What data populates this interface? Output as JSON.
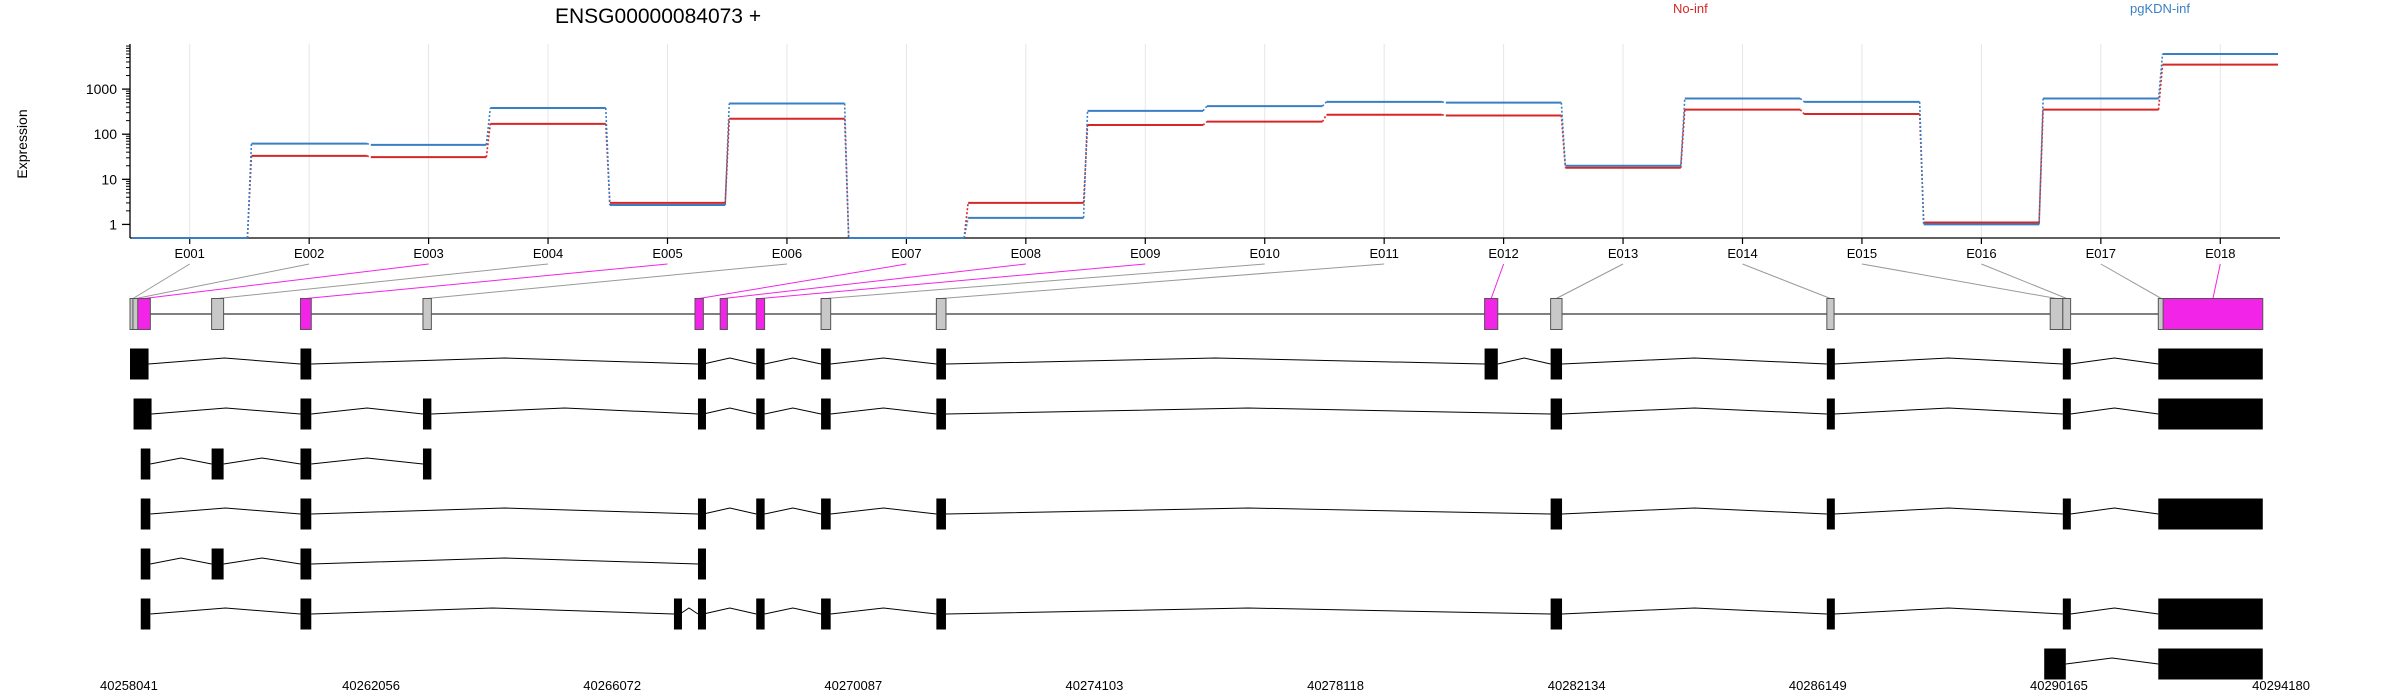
{
  "title": "ENSG00000084073 +",
  "ylabel": "Expression",
  "legend": [
    {
      "name": "No-inf",
      "color": "#d62728"
    },
    {
      "name": "pgKDN-inf",
      "color": "#3a7fc4"
    }
  ],
  "colors": {
    "highlight": "#f224e8",
    "gray_exon": "#c8c8c8",
    "black_exon": "#000000"
  },
  "chart_data": {
    "type": "line",
    "scale": "log",
    "ylim": [
      0.5,
      10000
    ],
    "yticks": [
      1,
      10,
      100,
      1000
    ],
    "ytick_labels": [
      "1",
      "10",
      "100",
      "1000"
    ],
    "categories": [
      "E001",
      "E002",
      "E003",
      "E004",
      "E005",
      "E006",
      "E007",
      "E008",
      "E009",
      "E010",
      "E011",
      "E012",
      "E013",
      "E014",
      "E015",
      "E016",
      "E017",
      "E018"
    ],
    "grid": true,
    "series": [
      {
        "name": "No-inf",
        "color": "#d62728",
        "values": [
          0.5,
          33,
          31,
          170,
          3,
          220,
          0.5,
          3,
          160,
          190,
          270,
          260,
          18,
          350,
          280,
          1.1,
          350,
          3500
        ]
      },
      {
        "name": "pgKDN-inf",
        "color": "#3a7fc4",
        "values": [
          0.5,
          62,
          58,
          380,
          2.7,
          480,
          0.5,
          1.4,
          330,
          420,
          520,
          500,
          20,
          620,
          520,
          1.0,
          620,
          6000
        ]
      }
    ],
    "genomic_axis": {
      "range": [
        40258041,
        40294180
      ],
      "ticks": [
        40258041,
        40262056,
        40266072,
        40270087,
        40274103,
        40278118,
        40282134,
        40286149,
        40290165,
        40294180
      ],
      "tick_labels": [
        "40258041",
        "40262056",
        "40266072",
        "40270087",
        "40274103",
        "40278118",
        "40282134",
        "40286149",
        "40290165",
        "40294180"
      ]
    },
    "exon_bins": [
      {
        "id": "E001",
        "start": 40258041,
        "end": 40258090,
        "hl": false
      },
      {
        "id": "E002",
        "start": 40258090,
        "end": 40258170,
        "hl": false
      },
      {
        "id": "E003",
        "start": 40258170,
        "end": 40258380,
        "hl": true
      },
      {
        "id": "E004",
        "start": 40259400,
        "end": 40259600,
        "hl": false
      },
      {
        "id": "E005",
        "start": 40260880,
        "end": 40261060,
        "hl": true
      },
      {
        "id": "E006",
        "start": 40262920,
        "end": 40263060,
        "hl": false
      },
      {
        "id": "E007",
        "start": 40267450,
        "end": 40267590,
        "hl": true
      },
      {
        "id": "E008",
        "start": 40267870,
        "end": 40267990,
        "hl": true
      },
      {
        "id": "E009",
        "start": 40268470,
        "end": 40268610,
        "hl": true
      },
      {
        "id": "E010",
        "start": 40269550,
        "end": 40269710,
        "hl": false
      },
      {
        "id": "E011",
        "start": 40271470,
        "end": 40271630,
        "hl": false
      },
      {
        "id": "E012",
        "start": 40280600,
        "end": 40280820,
        "hl": true
      },
      {
        "id": "E013",
        "start": 40281700,
        "end": 40281890,
        "hl": false
      },
      {
        "id": "E014",
        "start": 40286300,
        "end": 40286420,
        "hl": false
      },
      {
        "id": "E015",
        "start": 40290020,
        "end": 40290230,
        "hl": false
      },
      {
        "id": "E016",
        "start": 40290230,
        "end": 40290360,
        "hl": false
      },
      {
        "id": "E017",
        "start": 40291820,
        "end": 40291900,
        "hl": false
      },
      {
        "id": "E018",
        "start": 40291900,
        "end": 40293560,
        "hl": true
      }
    ],
    "transcripts": [
      [
        [
          40258041,
          40258350
        ],
        [
          40260880,
          40261060
        ],
        [
          40267500,
          40267590
        ],
        [
          40268470,
          40268610
        ],
        [
          40269550,
          40269710
        ],
        [
          40271470,
          40271630
        ],
        [
          40280600,
          40280820
        ],
        [
          40281700,
          40281890
        ],
        [
          40286300,
          40286420
        ],
        [
          40290230,
          40290360
        ],
        [
          40291820,
          40293560
        ]
      ],
      [
        [
          40258100,
          40258400
        ],
        [
          40260880,
          40261060
        ],
        [
          40262920,
          40263060
        ],
        [
          40267500,
          40267590
        ],
        [
          40268470,
          40268610
        ],
        [
          40269550,
          40269710
        ],
        [
          40271470,
          40271630
        ],
        [
          40281700,
          40281890
        ],
        [
          40286300,
          40286420
        ],
        [
          40290230,
          40290360
        ],
        [
          40291820,
          40293560
        ]
      ],
      [
        [
          40258220,
          40258380
        ],
        [
          40259400,
          40259600
        ],
        [
          40260880,
          40261060
        ],
        [
          40262920,
          40263060
        ]
      ],
      [
        [
          40258220,
          40258380
        ],
        [
          40260880,
          40261060
        ],
        [
          40267500,
          40267590
        ],
        [
          40268470,
          40268610
        ],
        [
          40269550,
          40269710
        ],
        [
          40271470,
          40271630
        ],
        [
          40281700,
          40281890
        ],
        [
          40286300,
          40286420
        ],
        [
          40290230,
          40290360
        ],
        [
          40291820,
          40293560
        ]
      ],
      [
        [
          40258220,
          40258380
        ],
        [
          40259400,
          40259600
        ],
        [
          40260880,
          40261060
        ],
        [
          40267500,
          40267590
        ]
      ],
      [
        [
          40258220,
          40258380
        ],
        [
          40260880,
          40261060
        ],
        [
          40267100,
          40267200
        ],
        [
          40267500,
          40267590
        ],
        [
          40268470,
          40268610
        ],
        [
          40269550,
          40269710
        ],
        [
          40271470,
          40271630
        ],
        [
          40281700,
          40281890
        ],
        [
          40286300,
          40286420
        ],
        [
          40290230,
          40290360
        ],
        [
          40291820,
          40293560
        ]
      ],
      [
        [
          40289920,
          40290280
        ],
        [
          40291820,
          40293560
        ]
      ]
    ]
  }
}
